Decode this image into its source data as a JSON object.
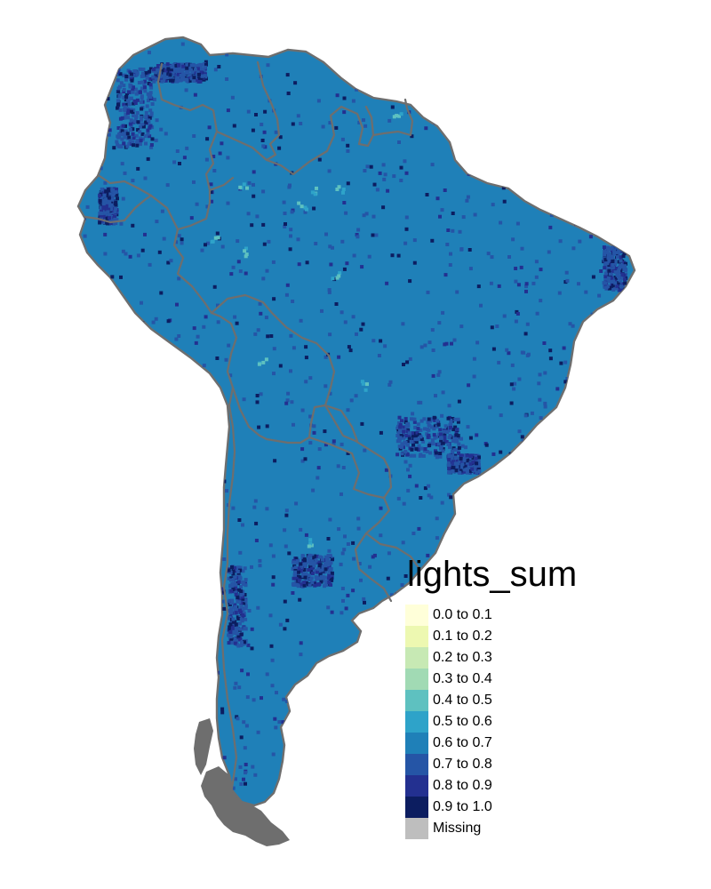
{
  "map": {
    "land_color": "#1f80b8",
    "border_color": "#6e6e6e",
    "missing_color": "#6e6e6e",
    "background_color": "#ffffff"
  },
  "legend": {
    "title": "lights_sum",
    "items": [
      {
        "label": "0.0 to 0.1",
        "color": "#ffffd9"
      },
      {
        "label": "0.1 to 0.2",
        "color": "#edf8b1"
      },
      {
        "label": "0.2 to 0.3",
        "color": "#c7e9b4"
      },
      {
        "label": "0.3 to 0.4",
        "color": "#a1dab4"
      },
      {
        "label": "0.4 to 0.5",
        "color": "#5ec1c0"
      },
      {
        "label": "0.5 to 0.6",
        "color": "#2ea3c9"
      },
      {
        "label": "0.6 to 0.7",
        "color": "#1f80b8"
      },
      {
        "label": "0.7 to 0.8",
        "color": "#2555a6"
      },
      {
        "label": "0.8 to 0.9",
        "color": "#233090"
      },
      {
        "label": "0.9 to 1.0",
        "color": "#0c1d60"
      },
      {
        "label": "Missing",
        "color": "#bebebe"
      }
    ]
  }
}
